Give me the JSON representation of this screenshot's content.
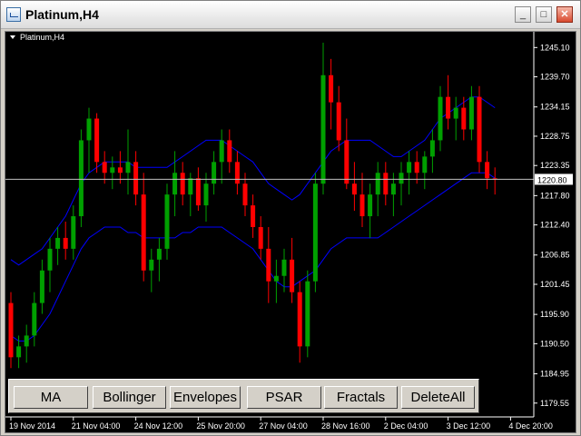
{
  "window": {
    "title": "Platinum,H4"
  },
  "window_controls": {
    "minimize": "_",
    "maximize": "□",
    "close": "✕"
  },
  "chart_label": "Platinum,H4",
  "current_price": "1220.80",
  "colors": {
    "background": "#000000",
    "bull": "#00a000",
    "bear": "#ff0000",
    "band": "#0000ff",
    "price_line": "#c0c0c0",
    "text": "#ffffff"
  },
  "buttons": [
    "MA",
    "Bollinger",
    "Envelopes",
    "PSAR",
    "Fractals",
    "DeleteAll"
  ],
  "chart_data": {
    "type": "candlestick",
    "symbol": "Platinum",
    "timeframe": "H4",
    "ylim": [
      1177.0,
      1248.0
    ],
    "current_price": 1220.8,
    "y_ticks": [
      "1245.10",
      "1239.70",
      "1234.15",
      "1228.75",
      "1223.35",
      "1217.80",
      "1212.40",
      "1206.85",
      "1201.45",
      "1195.90",
      "1190.50",
      "1184.95",
      "1179.55"
    ],
    "x_ticks": [
      {
        "label": "19 Nov 2014",
        "index": 0
      },
      {
        "label": "21 Nov 04:00",
        "index": 8
      },
      {
        "label": "24 Nov 12:00",
        "index": 16
      },
      {
        "label": "25 Nov 20:00",
        "index": 24
      },
      {
        "label": "27 Nov 04:00",
        "index": 32
      },
      {
        "label": "28 Nov 16:00",
        "index": 40
      },
      {
        "label": "2 Dec 04:00",
        "index": 48
      },
      {
        "label": "3 Dec 12:00",
        "index": 56
      },
      {
        "label": "4 Dec 20:00",
        "index": 64
      }
    ],
    "candles": [
      [
        1198,
        1200,
        1186,
        1188
      ],
      [
        1188,
        1192,
        1186,
        1190
      ],
      [
        1190,
        1194,
        1187,
        1192
      ],
      [
        1192,
        1200,
        1190,
        1198
      ],
      [
        1198,
        1206,
        1196,
        1204
      ],
      [
        1204,
        1210,
        1200,
        1208
      ],
      [
        1208,
        1212,
        1205,
        1210
      ],
      [
        1210,
        1213,
        1206,
        1208
      ],
      [
        1208,
        1216,
        1206,
        1214
      ],
      [
        1214,
        1230,
        1212,
        1228
      ],
      [
        1228,
        1234,
        1222,
        1232
      ],
      [
        1232,
        1233,
        1222,
        1224
      ],
      [
        1224,
        1226,
        1220,
        1222
      ],
      [
        1222,
        1225,
        1219,
        1223
      ],
      [
        1223,
        1226,
        1220,
        1222
      ],
      [
        1222,
        1230,
        1218,
        1224
      ],
      [
        1224,
        1226,
        1216,
        1218
      ],
      [
        1218,
        1222,
        1202,
        1204
      ],
      [
        1204,
        1208,
        1200,
        1206
      ],
      [
        1206,
        1210,
        1202,
        1208
      ],
      [
        1208,
        1220,
        1206,
        1218
      ],
      [
        1218,
        1226,
        1214,
        1222
      ],
      [
        1222,
        1224,
        1216,
        1218
      ],
      [
        1218,
        1222,
        1214,
        1221
      ],
      [
        1221,
        1223,
        1215,
        1216
      ],
      [
        1216,
        1222,
        1213,
        1220
      ],
      [
        1220,
        1226,
        1218,
        1224
      ],
      [
        1224,
        1230,
        1220,
        1228
      ],
      [
        1228,
        1230,
        1222,
        1224
      ],
      [
        1224,
        1226,
        1218,
        1220
      ],
      [
        1220,
        1222,
        1214,
        1216
      ],
      [
        1216,
        1218,
        1210,
        1212
      ],
      [
        1212,
        1214,
        1206,
        1208
      ],
      [
        1208,
        1212,
        1198,
        1202
      ],
      [
        1202,
        1206,
        1198,
        1203
      ],
      [
        1203,
        1208,
        1200,
        1206
      ],
      [
        1206,
        1210,
        1198,
        1200
      ],
      [
        1200,
        1202,
        1187,
        1190
      ],
      [
        1190,
        1204,
        1188,
        1202
      ],
      [
        1202,
        1222,
        1200,
        1220
      ],
      [
        1220,
        1246,
        1218,
        1240
      ],
      [
        1240,
        1243,
        1230,
        1235
      ],
      [
        1235,
        1238,
        1226,
        1228
      ],
      [
        1228,
        1232,
        1219,
        1220
      ],
      [
        1220,
        1224,
        1215,
        1218
      ],
      [
        1218,
        1222,
        1212,
        1214
      ],
      [
        1214,
        1220,
        1210,
        1218
      ],
      [
        1218,
        1224,
        1214,
        1222
      ],
      [
        1222,
        1224,
        1216,
        1218
      ],
      [
        1218,
        1222,
        1214,
        1220
      ],
      [
        1220,
        1224,
        1216,
        1222
      ],
      [
        1222,
        1226,
        1218,
        1224
      ],
      [
        1224,
        1226,
        1220,
        1222
      ],
      [
        1222,
        1226,
        1219,
        1225
      ],
      [
        1225,
        1230,
        1222,
        1228
      ],
      [
        1228,
        1238,
        1226,
        1236
      ],
      [
        1236,
        1240,
        1230,
        1232
      ],
      [
        1232,
        1236,
        1228,
        1234
      ],
      [
        1234,
        1236,
        1228,
        1230
      ],
      [
        1230,
        1238,
        1228,
        1236
      ],
      [
        1236,
        1238,
        1222,
        1224
      ],
      [
        1224,
        1226,
        1219,
        1221
      ],
      [
        1221,
        1223,
        1218,
        1220.8
      ]
    ],
    "bollinger_upper": [
      1206,
      1205,
      1206,
      1207,
      1208,
      1210,
      1212,
      1214,
      1217,
      1220,
      1222,
      1223,
      1224,
      1224,
      1224,
      1224,
      1223,
      1223,
      1223,
      1223,
      1223,
      1224,
      1225,
      1226,
      1227,
      1228,
      1228,
      1228,
      1227,
      1226,
      1225,
      1224,
      1222,
      1220,
      1219,
      1218,
      1217,
      1218,
      1220,
      1222,
      1224,
      1226,
      1227,
      1228,
      1228,
      1228,
      1228,
      1227,
      1226,
      1225,
      1225,
      1226,
      1227,
      1228,
      1230,
      1232,
      1233,
      1234,
      1235,
      1236,
      1236,
      1235,
      1234
    ],
    "bollinger_lower": [
      1192,
      1191,
      1191,
      1192,
      1194,
      1196,
      1199,
      1202,
      1205,
      1208,
      1210,
      1211,
      1212,
      1212,
      1212,
      1211,
      1211,
      1210,
      1210,
      1210,
      1210,
      1210,
      1211,
      1211,
      1212,
      1212,
      1212,
      1212,
      1211,
      1210,
      1209,
      1208,
      1206,
      1204,
      1202,
      1201,
      1201,
      1202,
      1203,
      1204,
      1206,
      1208,
      1209,
      1210,
      1210,
      1210,
      1210,
      1210,
      1211,
      1212,
      1213,
      1214,
      1215,
      1216,
      1217,
      1218,
      1219,
      1220,
      1221,
      1222,
      1222,
      1222,
      1221
    ]
  }
}
